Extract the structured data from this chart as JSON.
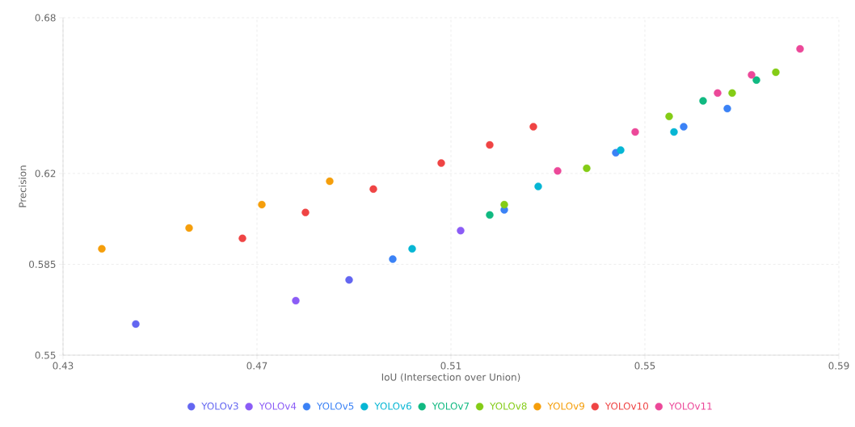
{
  "chart_data": {
    "type": "scatter",
    "xlabel": "IoU (Intersection over Union)",
    "ylabel": "Precision",
    "xlim": [
      0.43,
      0.59
    ],
    "ylim": [
      0.55,
      0.68
    ],
    "xticks": [
      0.43,
      0.47,
      0.51,
      0.55,
      0.59
    ],
    "yticks": [
      0.55,
      0.585,
      0.62,
      0.68
    ],
    "grid": true,
    "legend": "bottom",
    "marker": "circle",
    "series": [
      {
        "name": "YOLOv3",
        "color": "#6366f1",
        "x": [
          0.445,
          0.489
        ],
        "values": [
          0.562,
          0.579
        ]
      },
      {
        "name": "YOLOv4",
        "color": "#8b5cf6",
        "x": [
          0.478,
          0.512
        ],
        "values": [
          0.571,
          0.598
        ]
      },
      {
        "name": "YOLOv5",
        "color": "#3b82f6",
        "x": [
          0.498,
          0.521,
          0.544,
          0.558,
          0.567
        ],
        "values": [
          0.587,
          0.606,
          0.628,
          0.638,
          0.645
        ]
      },
      {
        "name": "YOLOv6",
        "color": "#06b6d4",
        "x": [
          0.502,
          0.528,
          0.545,
          0.556
        ],
        "values": [
          0.591,
          0.615,
          0.629,
          0.636
        ]
      },
      {
        "name": "YOLOv7",
        "color": "#10b981",
        "x": [
          0.518,
          0.562,
          0.573
        ],
        "values": [
          0.604,
          0.648,
          0.656
        ]
      },
      {
        "name": "YOLOv8",
        "color": "#84cc16",
        "x": [
          0.521,
          0.538,
          0.555,
          0.568,
          0.577
        ],
        "values": [
          0.608,
          0.622,
          0.642,
          0.651,
          0.659
        ]
      },
      {
        "name": "YOLOv9",
        "color": "#f59e0b",
        "x": [
          0.438,
          0.456,
          0.471,
          0.485
        ],
        "values": [
          0.591,
          0.599,
          0.608,
          0.617
        ]
      },
      {
        "name": "YOLOv10",
        "color": "#ef4444",
        "x": [
          0.467,
          0.48,
          0.494,
          0.508,
          0.518,
          0.527
        ],
        "values": [
          0.595,
          0.605,
          0.614,
          0.624,
          0.631,
          0.638
        ]
      },
      {
        "name": "YOLOv11",
        "color": "#ec4899",
        "x": [
          0.532,
          0.548,
          0.565,
          0.572,
          0.582
        ],
        "values": [
          0.621,
          0.636,
          0.651,
          0.658,
          0.668
        ]
      }
    ]
  }
}
